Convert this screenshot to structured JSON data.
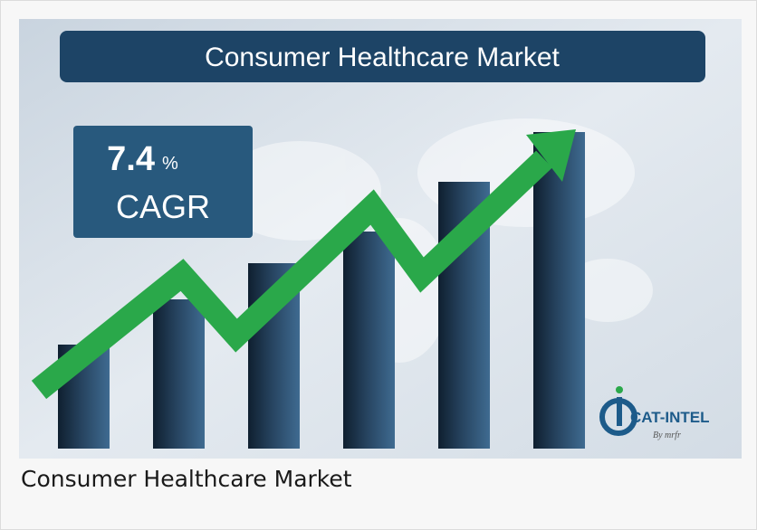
{
  "banner": {
    "title": "Consumer Healthcare Market"
  },
  "badge": {
    "value": 7.4,
    "unit": "%",
    "label": "CAGR"
  },
  "logo": {
    "name": "CAT-INTEL",
    "byline": "By mrfr"
  },
  "caption": "Consumer Healthcare Market"
}
